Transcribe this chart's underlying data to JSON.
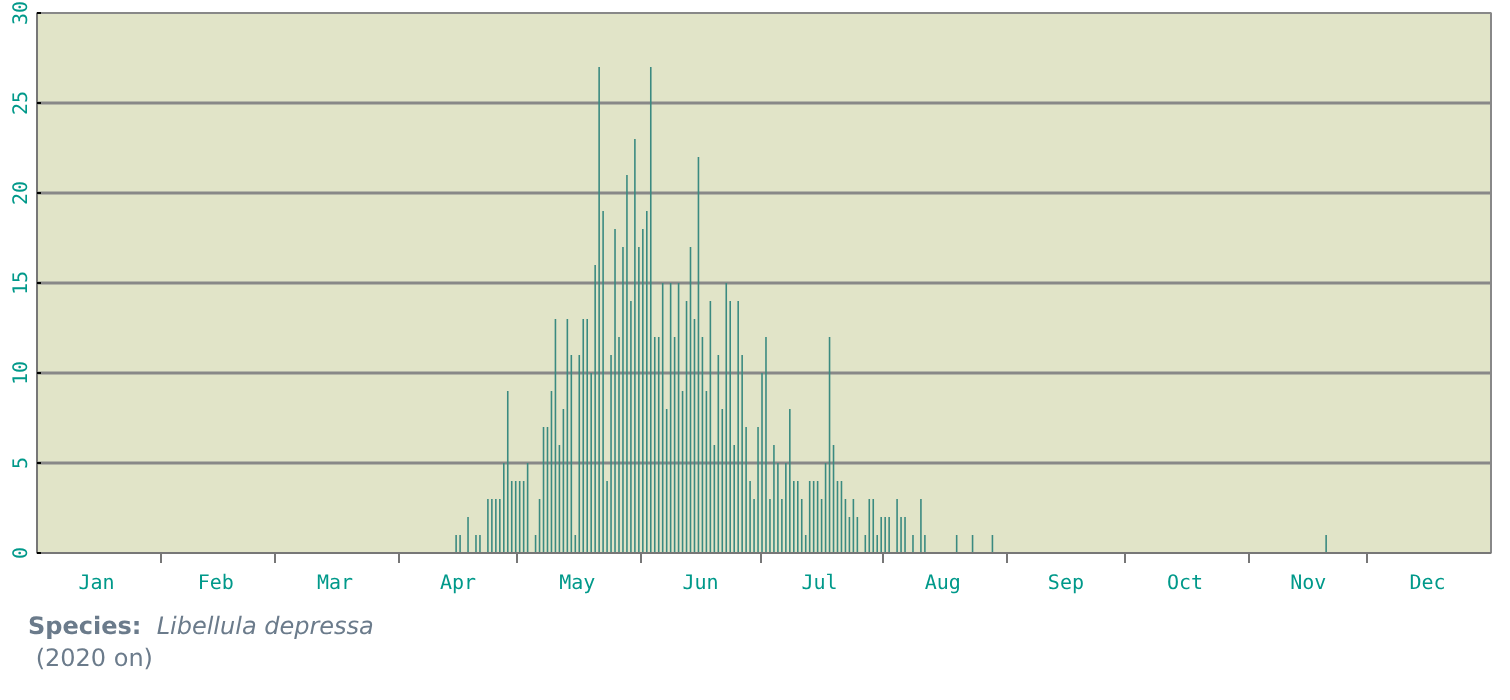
{
  "chart_data": {
    "type": "bar",
    "color": "#3a8a80",
    "x": [
      "2020-04-15",
      "2020-04-16",
      "2020-04-17",
      "2020-04-18",
      "2020-04-19",
      "2020-04-20",
      "2020-04-21",
      "2020-04-22",
      "2020-04-23",
      "2020-04-24",
      "2020-04-25",
      "2020-04-26",
      "2020-04-27",
      "2020-04-28",
      "2020-04-29",
      "2020-04-30",
      "2020-05-01",
      "2020-05-02",
      "2020-05-03",
      "2020-05-04",
      "2020-05-05",
      "2020-05-06",
      "2020-05-07",
      "2020-05-08",
      "2020-05-09",
      "2020-05-10",
      "2020-05-11",
      "2020-05-12",
      "2020-05-13",
      "2020-05-14",
      "2020-05-15",
      "2020-05-16",
      "2020-05-17",
      "2020-05-18",
      "2020-05-19",
      "2020-05-20",
      "2020-05-21",
      "2020-05-22",
      "2020-05-23",
      "2020-05-24",
      "2020-05-25",
      "2020-05-26",
      "2020-05-27",
      "2020-05-28",
      "2020-05-29",
      "2020-05-30",
      "2020-05-31",
      "2020-06-01",
      "2020-06-02",
      "2020-06-03",
      "2020-06-04",
      "2020-06-05",
      "2020-06-06",
      "2020-06-07",
      "2020-06-08",
      "2020-06-09",
      "2020-06-10",
      "2020-06-11",
      "2020-06-12",
      "2020-06-13",
      "2020-06-14",
      "2020-06-15",
      "2020-06-16",
      "2020-06-17",
      "2020-06-18",
      "2020-06-19",
      "2020-06-20",
      "2020-06-21",
      "2020-06-22",
      "2020-06-23",
      "2020-06-24",
      "2020-06-25",
      "2020-06-26",
      "2020-06-27",
      "2020-06-28",
      "2020-06-29",
      "2020-06-30",
      "2020-07-01",
      "2020-07-02",
      "2020-07-03",
      "2020-07-04",
      "2020-07-05",
      "2020-07-06",
      "2020-07-07",
      "2020-07-08",
      "2020-07-09",
      "2020-07-10",
      "2020-07-11",
      "2020-07-12",
      "2020-07-13",
      "2020-07-14",
      "2020-07-15",
      "2020-07-16",
      "2020-07-17",
      "2020-07-18",
      "2020-07-19",
      "2020-07-20",
      "2020-07-21",
      "2020-07-22",
      "2020-07-23",
      "2020-07-24",
      "2020-07-25",
      "2020-07-26",
      "2020-07-27",
      "2020-07-28",
      "2020-07-29",
      "2020-07-30",
      "2020-07-31",
      "2020-08-01",
      "2020-08-02",
      "2020-08-03",
      "2020-08-04",
      "2020-08-05",
      "2020-08-06",
      "2020-08-07",
      "2020-08-08",
      "2020-08-09",
      "2020-08-10",
      "2020-08-11",
      "2020-08-19",
      "2020-08-23",
      "2020-08-28",
      "2020-11-20"
    ],
    "values": [
      1,
      1,
      0,
      2,
      0,
      1,
      1,
      0,
      3,
      3,
      3,
      3,
      5,
      9,
      4,
      4,
      4,
      4,
      5,
      0,
      1,
      3,
      7,
      7,
      9,
      13,
      6,
      8,
      13,
      11,
      1,
      11,
      13,
      13,
      10,
      16,
      27,
      19,
      4,
      11,
      18,
      12,
      17,
      21,
      14,
      23,
      17,
      18,
      19,
      27,
      12,
      12,
      15,
      8,
      15,
      12,
      15,
      9,
      14,
      17,
      13,
      22,
      12,
      9,
      14,
      6,
      11,
      8,
      15,
      14,
      6,
      14,
      11,
      7,
      4,
      3,
      7,
      10,
      12,
      3,
      6,
      5,
      3,
      5,
      8,
      4,
      4,
      3,
      1,
      4,
      4,
      4,
      3,
      5,
      12,
      6,
      4,
      4,
      3,
      2,
      3,
      2,
      0,
      1,
      3,
      3,
      1,
      2,
      2,
      2,
      0,
      3,
      2,
      2,
      0,
      1,
      0,
      3,
      1,
      1,
      1,
      1,
      1
    ],
    "xlim": [
      "2020-01-01",
      "2021-01-01"
    ],
    "xticks": [
      {
        "value": "2020-01-16",
        "label": "Jan"
      },
      {
        "value": "2020-02-15",
        "label": "Feb"
      },
      {
        "value": "2020-03-16",
        "label": "Mar"
      },
      {
        "value": "2020-04-16",
        "label": "Apr"
      },
      {
        "value": "2020-05-16",
        "label": "May"
      },
      {
        "value": "2020-06-16",
        "label": "Jun"
      },
      {
        "value": "2020-07-16",
        "label": "Jul"
      },
      {
        "value": "2020-08-16",
        "label": "Aug"
      },
      {
        "value": "2020-09-16",
        "label": "Sep"
      },
      {
        "value": "2020-10-16",
        "label": "Oct"
      },
      {
        "value": "2020-11-16",
        "label": "Nov"
      },
      {
        "value": "2020-12-16",
        "label": "Dec"
      },
      {
        "value": "2020-02-01",
        "label": null
      },
      {
        "value": "2020-03-01",
        "label": null
      },
      {
        "value": "2020-04-01",
        "label": null
      },
      {
        "value": "2020-05-01",
        "label": null
      },
      {
        "value": "2020-06-01",
        "label": null
      },
      {
        "value": "2020-07-01",
        "label": null
      },
      {
        "value": "2020-08-01",
        "label": null
      },
      {
        "value": "2020-09-01",
        "label": null
      },
      {
        "value": "2020-10-01",
        "label": null
      },
      {
        "value": "2020-11-01",
        "label": null
      },
      {
        "value": "2020-12-01",
        "label": null
      }
    ],
    "ylim": [
      0,
      30
    ],
    "yticks": [
      0,
      5,
      10,
      15,
      20,
      25,
      30
    ],
    "grid": "y",
    "annotations": [
      "Species: Libellula depressa",
      "(2020 on)"
    ]
  }
}
